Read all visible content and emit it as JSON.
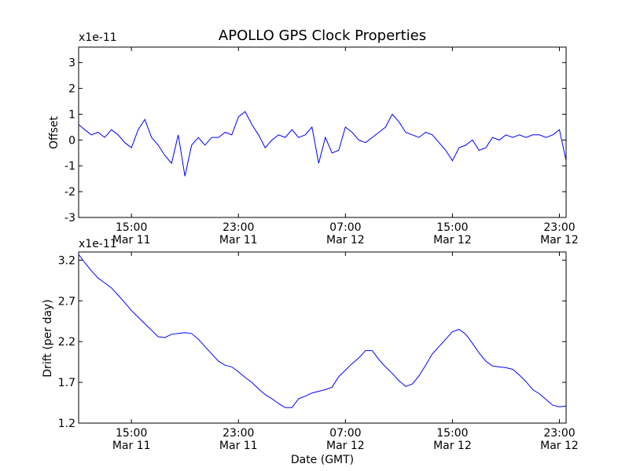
{
  "chart_data": [
    {
      "type": "line",
      "title": "APOLLO GPS Clock Properties",
      "ylabel": "Offset",
      "xlabel": "",
      "y_scale_text": "x1e-11",
      "ylim": [
        -3,
        3.6
      ],
      "y_ticks": [
        -3,
        -2,
        -1,
        0,
        1,
        2,
        3
      ],
      "y_tick_labels": [
        "-3",
        "-2",
        "-1",
        "0",
        "1",
        "2",
        "3"
      ],
      "x_tick_labels": [
        [
          "15:00",
          "Mar 11"
        ],
        [
          "23:00",
          "Mar 11"
        ],
        [
          "07:00",
          "Mar 12"
        ],
        [
          "15:00",
          "Mar 12"
        ],
        [
          "23:00",
          "Mar 12"
        ]
      ],
      "x_ticks_hours": [
        15,
        23,
        31,
        39,
        47
      ],
      "xlim_hours": [
        11.05,
        47.5
      ],
      "line_color": "#0000ff",
      "series": [
        {
          "x_hours": [
            11.05,
            11.5,
            12.0,
            12.5,
            13.0,
            13.5,
            14.0,
            14.5,
            15.0,
            15.5,
            16.0,
            16.5,
            17.0,
            17.5,
            18.0,
            18.5,
            19.0,
            19.5,
            20.0,
            20.5,
            21.0,
            21.5,
            22.0,
            22.5,
            23.0,
            23.5,
            24.0,
            24.5,
            25.0,
            25.5,
            26.0,
            26.5,
            27.0,
            27.5,
            28.0,
            28.5,
            29.0,
            29.5,
            30.0,
            30.5,
            31.0,
            31.5,
            32.0,
            32.5,
            33.0,
            33.5,
            34.0,
            34.5,
            35.0,
            35.5,
            36.0,
            36.5,
            37.0,
            37.5,
            38.0,
            38.5,
            39.0,
            39.5,
            40.0,
            40.5,
            41.0,
            41.5,
            42.0,
            42.5,
            43.0,
            43.5,
            44.0,
            44.5,
            45.0,
            45.5,
            46.0,
            46.5,
            47.0,
            47.5
          ],
          "values": [
            0.6,
            0.4,
            0.2,
            0.3,
            0.1,
            0.4,
            0.2,
            -0.1,
            -0.3,
            0.4,
            0.8,
            0.1,
            -0.2,
            -0.6,
            -0.9,
            0.2,
            -1.4,
            -0.2,
            0.1,
            -0.2,
            0.1,
            0.1,
            0.3,
            0.2,
            0.9,
            1.1,
            0.6,
            0.2,
            -0.3,
            0.0,
            0.2,
            0.1,
            0.4,
            0.1,
            0.2,
            0.5,
            -0.9,
            0.1,
            -0.5,
            -0.4,
            0.5,
            0.3,
            0.0,
            -0.1,
            0.1,
            0.3,
            0.5,
            1.0,
            0.7,
            0.3,
            0.2,
            0.1,
            0.3,
            0.2,
            -0.1,
            -0.4,
            -0.8,
            -0.3,
            -0.2,
            0.0,
            -0.4,
            -0.3,
            0.1,
            0.0,
            0.2,
            0.1,
            0.2,
            0.1,
            0.2,
            0.2,
            0.1,
            0.2,
            0.4,
            -0.8
          ]
        }
      ]
    },
    {
      "type": "line",
      "title": "",
      "ylabel": "Drift (per day)",
      "xlabel": "Date (GMT)",
      "y_scale_text": "x1e-11",
      "ylim": [
        1.2,
        3.3
      ],
      "y_ticks": [
        1.2,
        1.7,
        2.2,
        2.7,
        3.2
      ],
      "y_tick_labels": [
        "1.2",
        "1.7",
        "2.2",
        "2.7",
        "3.2"
      ],
      "x_tick_labels": [
        [
          "15:00",
          "Mar 11"
        ],
        [
          "23:00",
          "Mar 11"
        ],
        [
          "07:00",
          "Mar 12"
        ],
        [
          "15:00",
          "Mar 12"
        ],
        [
          "23:00",
          "Mar 12"
        ]
      ],
      "x_ticks_hours": [
        15,
        23,
        31,
        39,
        47
      ],
      "xlim_hours": [
        11.05,
        47.5
      ],
      "line_color": "#0000ff",
      "series": [
        {
          "x_hours": [
            11.05,
            11.5,
            12.0,
            12.5,
            13.0,
            13.5,
            14.0,
            14.5,
            15.0,
            15.5,
            16.0,
            16.5,
            17.0,
            17.5,
            18.0,
            18.5,
            19.0,
            19.5,
            20.0,
            20.5,
            21.0,
            21.5,
            22.0,
            22.5,
            23.0,
            23.5,
            24.0,
            24.5,
            25.0,
            25.5,
            26.0,
            26.5,
            27.0,
            27.5,
            28.0,
            28.5,
            29.0,
            29.5,
            30.0,
            30.5,
            31.0,
            31.5,
            32.0,
            32.5,
            33.0,
            33.5,
            34.0,
            34.5,
            35.0,
            35.5,
            36.0,
            36.5,
            37.0,
            37.5,
            38.0,
            38.5,
            39.0,
            39.5,
            40.0,
            40.5,
            41.0,
            41.5,
            42.0,
            42.5,
            43.0,
            43.5,
            44.0,
            44.5,
            45.0,
            45.5,
            46.0,
            46.5,
            47.0,
            47.5
          ],
          "values": [
            3.27,
            3.17,
            3.07,
            2.98,
            2.92,
            2.86,
            2.77,
            2.68,
            2.58,
            2.5,
            2.42,
            2.34,
            2.26,
            2.25,
            2.29,
            2.3,
            2.31,
            2.3,
            2.23,
            2.14,
            2.05,
            1.96,
            1.91,
            1.89,
            1.83,
            1.76,
            1.7,
            1.62,
            1.55,
            1.5,
            1.44,
            1.39,
            1.39,
            1.5,
            1.53,
            1.57,
            1.59,
            1.61,
            1.64,
            1.77,
            1.85,
            1.93,
            2.0,
            2.09,
            2.09,
            1.98,
            1.89,
            1.81,
            1.72,
            1.65,
            1.68,
            1.78,
            1.91,
            2.05,
            2.14,
            2.23,
            2.32,
            2.35,
            2.29,
            2.18,
            2.06,
            1.96,
            1.9,
            1.89,
            1.88,
            1.86,
            1.79,
            1.71,
            1.61,
            1.56,
            1.49,
            1.42,
            1.4,
            1.41
          ]
        }
      ]
    }
  ]
}
